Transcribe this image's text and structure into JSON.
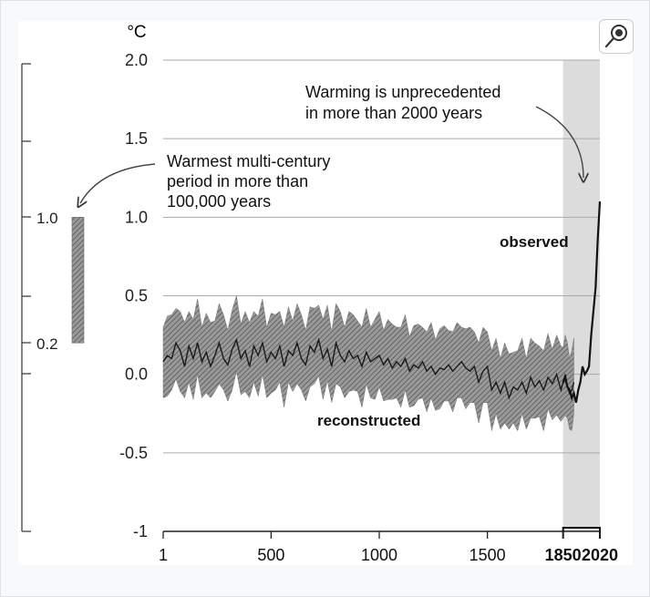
{
  "chart_data": {
    "type": "line",
    "ylabel": "°C",
    "ylim": [
      -1,
      2
    ],
    "y_ticks": [
      "2.0",
      "1.5",
      "1.0",
      "0.5",
      "0.0",
      "-0.5",
      "-1"
    ],
    "y_tick_values": [
      2.0,
      1.5,
      1.0,
      0.5,
      0.0,
      -0.5,
      -1.0
    ],
    "xlim": [
      1,
      2020
    ],
    "x_ticks": [
      "1",
      "500",
      "1000",
      "1500",
      "1850",
      "2020"
    ],
    "x_tick_values": [
      1,
      500,
      1000,
      1500,
      1850,
      2020
    ],
    "grid": true,
    "highlight_span": [
      1850,
      2020
    ],
    "paleo_bar": {
      "range": [
        0.2,
        1.0
      ],
      "labels": [
        "1.0",
        "0.2"
      ],
      "annotation": [
        "Warmest multi-century",
        "period in more than",
        "100,000 years"
      ]
    },
    "annotations": {
      "unprecedented": [
        "Warming is unprecedented",
        "in more than 2000 years"
      ],
      "observed_label": "observed",
      "reconstructed_label": "reconstructed"
    },
    "series": [
      {
        "name": "reconstructed",
        "x": [
          1,
          20,
          40,
          60,
          80,
          100,
          120,
          140,
          160,
          180,
          200,
          220,
          240,
          260,
          280,
          300,
          320,
          340,
          360,
          380,
          400,
          420,
          440,
          460,
          480,
          500,
          520,
          540,
          560,
          580,
          600,
          620,
          640,
          660,
          680,
          700,
          720,
          740,
          760,
          780,
          800,
          820,
          840,
          860,
          880,
          900,
          920,
          940,
          960,
          980,
          1000,
          1020,
          1040,
          1060,
          1080,
          1100,
          1120,
          1140,
          1160,
          1180,
          1200,
          1220,
          1240,
          1260,
          1280,
          1300,
          1320,
          1340,
          1360,
          1380,
          1400,
          1420,
          1440,
          1460,
          1480,
          1500,
          1520,
          1540,
          1560,
          1580,
          1600,
          1620,
          1640,
          1660,
          1680,
          1700,
          1720,
          1740,
          1760,
          1780,
          1800,
          1820,
          1840,
          1850,
          1860,
          1870,
          1880,
          1890,
          1900
        ],
        "values": [
          0.08,
          0.12,
          0.1,
          0.2,
          0.15,
          0.05,
          0.18,
          0.1,
          0.2,
          0.08,
          0.14,
          0.05,
          0.12,
          0.2,
          0.1,
          0.06,
          0.16,
          0.22,
          0.1,
          0.15,
          0.05,
          0.18,
          0.12,
          0.2,
          0.08,
          0.14,
          0.1,
          0.18,
          0.05,
          0.15,
          0.12,
          0.2,
          0.1,
          0.06,
          0.18,
          0.14,
          0.22,
          0.1,
          0.16,
          0.05,
          0.2,
          0.12,
          0.08,
          0.15,
          0.1,
          0.12,
          0.05,
          0.14,
          0.08,
          0.1,
          0.12,
          0.06,
          0.1,
          0.04,
          0.08,
          0.05,
          0.1,
          0.02,
          0.06,
          0.04,
          0.08,
          0.02,
          0.05,
          0.0,
          0.04,
          0.03,
          0.06,
          0.02,
          0.05,
          0.08,
          0.04,
          0.02,
          0.05,
          -0.05,
          0.02,
          0.05,
          -0.1,
          -0.05,
          -0.12,
          -0.05,
          -0.15,
          -0.08,
          -0.1,
          -0.05,
          -0.12,
          -0.02,
          -0.08,
          -0.04,
          -0.1,
          -0.02,
          -0.06,
          0.0,
          -0.1,
          -0.05,
          0.0,
          -0.08,
          -0.12,
          -0.1,
          -0.05
        ]
      },
      {
        "name": "observed",
        "x": [
          1850,
          1860,
          1870,
          1880,
          1890,
          1900,
          1910,
          1920,
          1930,
          1940,
          1950,
          1960,
          1970,
          1980,
          1990,
          2000,
          2010,
          2020
        ],
        "values": [
          -0.05,
          -0.02,
          -0.08,
          -0.1,
          -0.15,
          -0.12,
          -0.18,
          -0.1,
          -0.05,
          0.05,
          0.0,
          0.02,
          0.05,
          0.25,
          0.4,
          0.55,
          0.85,
          1.1
        ]
      }
    ]
  }
}
